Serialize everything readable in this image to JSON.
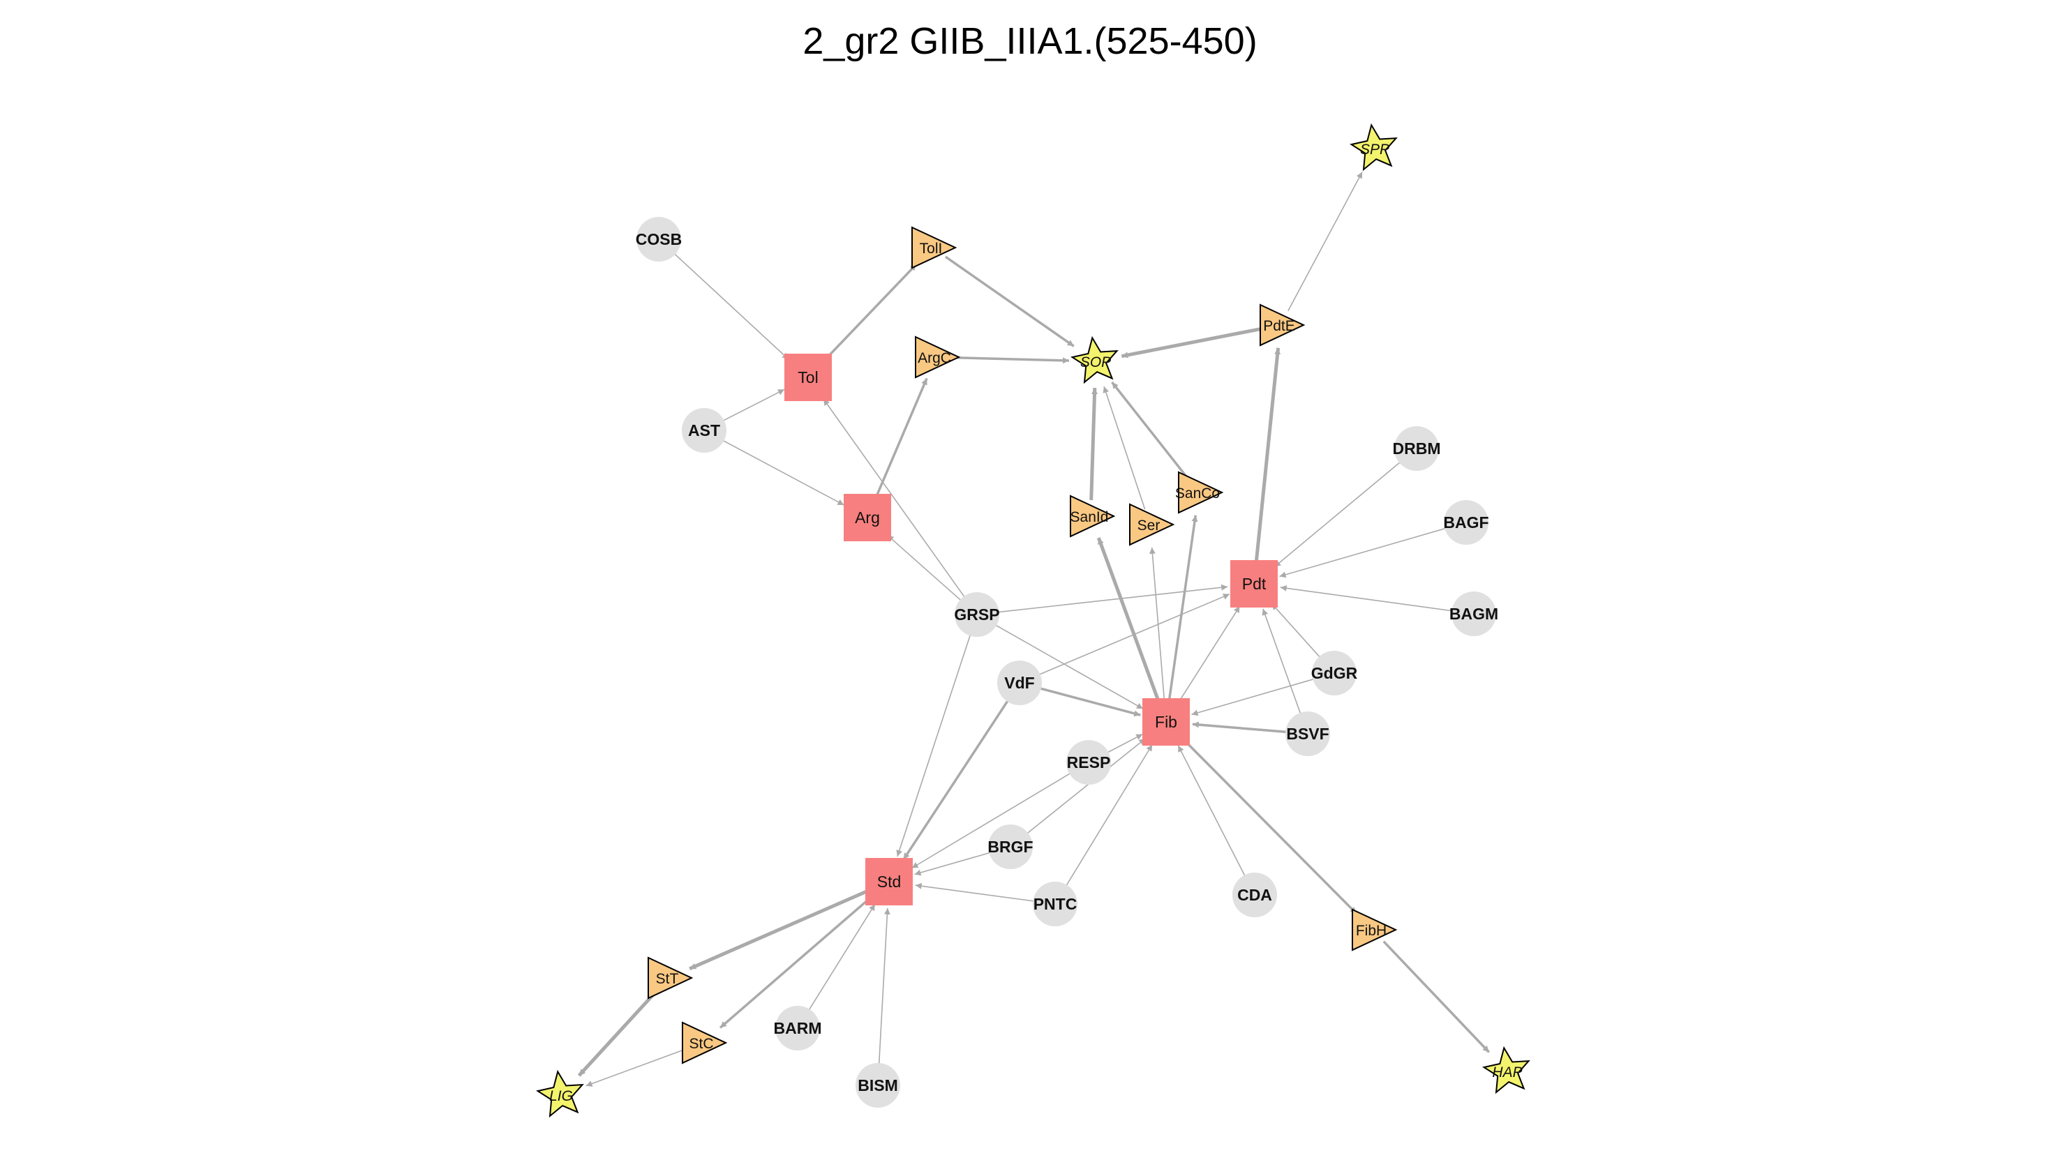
{
  "title": "2_gr2 GIIB_IIIA1.(525-450)",
  "colors": {
    "edge": "#aaaaaa",
    "circle_fill": "#e0e0e0",
    "square_fill": "#f87f7f",
    "triangle_fill": "#f9c883",
    "star_fill": "#f3f36e",
    "node_stroke": "#000000"
  },
  "nodes": [
    {
      "id": "COSB",
      "label": "COSB",
      "shape": "circle"
    },
    {
      "id": "AST",
      "label": "AST",
      "shape": "circle"
    },
    {
      "id": "Tol",
      "label": "Tol",
      "shape": "square"
    },
    {
      "id": "TolT",
      "label": "TolI",
      "shape": "triangle"
    },
    {
      "id": "ArgT",
      "label": "ArgC",
      "shape": "triangle"
    },
    {
      "id": "Arg",
      "label": "Arg",
      "shape": "square"
    },
    {
      "id": "SOP",
      "label": "SOP",
      "shape": "star"
    },
    {
      "id": "SPP",
      "label": "SPP",
      "shape": "star"
    },
    {
      "id": "PdtT",
      "label": "PdtE",
      "shape": "triangle"
    },
    {
      "id": "SanId",
      "label": "SanId",
      "shape": "triangle"
    },
    {
      "id": "Ser",
      "label": "Ser",
      "shape": "triangle"
    },
    {
      "id": "SanCo",
      "label": "SanCo",
      "shape": "triangle"
    },
    {
      "id": "Pdt",
      "label": "Pdt",
      "shape": "square"
    },
    {
      "id": "DRBM",
      "label": "DRBM",
      "shape": "circle"
    },
    {
      "id": "BAGF",
      "label": "BAGF",
      "shape": "circle"
    },
    {
      "id": "BAGM",
      "label": "BAGM",
      "shape": "circle"
    },
    {
      "id": "GRSP",
      "label": "GRSP",
      "shape": "circle"
    },
    {
      "id": "VdF",
      "label": "VdF",
      "shape": "circle"
    },
    {
      "id": "GdGR",
      "label": "GdGR",
      "shape": "circle"
    },
    {
      "id": "Fib",
      "label": "Fib",
      "shape": "square"
    },
    {
      "id": "BSVF",
      "label": "BSVF",
      "shape": "circle"
    },
    {
      "id": "RESP",
      "label": "RESP",
      "shape": "circle"
    },
    {
      "id": "BRGF",
      "label": "BRGF",
      "shape": "circle"
    },
    {
      "id": "Std",
      "label": "Std",
      "shape": "square"
    },
    {
      "id": "PNTC",
      "label": "PNTC",
      "shape": "circle"
    },
    {
      "id": "CDA",
      "label": "CDA",
      "shape": "circle"
    },
    {
      "id": "FibT",
      "label": "FibH",
      "shape": "triangle"
    },
    {
      "id": "StT",
      "label": "StT",
      "shape": "triangle"
    },
    {
      "id": "StC",
      "label": "StC",
      "shape": "triangle"
    },
    {
      "id": "BARM",
      "label": "BARM",
      "shape": "circle"
    },
    {
      "id": "BISM",
      "label": "BISM",
      "shape": "circle"
    },
    {
      "id": "LIG",
      "label": "LIG",
      "shape": "star"
    },
    {
      "id": "HAP",
      "label": "HAP",
      "shape": "star"
    }
  ],
  "edges": [
    {
      "from": "COSB",
      "to": "Tol",
      "weight": 1
    },
    {
      "from": "AST",
      "to": "Tol",
      "weight": 1
    },
    {
      "from": "AST",
      "to": "Arg",
      "weight": 1
    },
    {
      "from": "GRSP",
      "to": "Tol",
      "weight": 1
    },
    {
      "from": "GRSP",
      "to": "Arg",
      "weight": 1
    },
    {
      "from": "GRSP",
      "to": "Pdt",
      "weight": 1
    },
    {
      "from": "GRSP",
      "to": "Fib",
      "weight": 1
    },
    {
      "from": "GRSP",
      "to": "Std",
      "weight": 1
    },
    {
      "from": "Tol",
      "to": "TolT",
      "weight": 2
    },
    {
      "from": "TolT",
      "to": "SOP",
      "weight": 2
    },
    {
      "from": "Arg",
      "to": "ArgT",
      "weight": 2
    },
    {
      "from": "ArgT",
      "to": "SOP",
      "weight": 2
    },
    {
      "from": "PdtT",
      "to": "SOP",
      "weight": 3
    },
    {
      "from": "PdtT",
      "to": "SPP",
      "weight": 1
    },
    {
      "from": "Pdt",
      "to": "PdtT",
      "weight": 3
    },
    {
      "from": "SanId",
      "to": "SOP",
      "weight": 3
    },
    {
      "from": "Ser",
      "to": "SOP",
      "weight": 1
    },
    {
      "from": "SanCo",
      "to": "SOP",
      "weight": 2
    },
    {
      "from": "Fib",
      "to": "SanId",
      "weight": 3
    },
    {
      "from": "Fib",
      "to": "Ser",
      "weight": 1
    },
    {
      "from": "Fib",
      "to": "SanCo",
      "weight": 2
    },
    {
      "from": "Fib",
      "to": "Pdt",
      "weight": 1
    },
    {
      "from": "Fib",
      "to": "FibT",
      "weight": 2
    },
    {
      "from": "FibT",
      "to": "HAP",
      "weight": 2
    },
    {
      "from": "DRBM",
      "to": "Pdt",
      "weight": 1
    },
    {
      "from": "BAGF",
      "to": "Pdt",
      "weight": 1
    },
    {
      "from": "BAGM",
      "to": "Pdt",
      "weight": 1
    },
    {
      "from": "GdGR",
      "to": "Pdt",
      "weight": 1
    },
    {
      "from": "GdGR",
      "to": "Fib",
      "weight": 1
    },
    {
      "from": "BSVF",
      "to": "Pdt",
      "weight": 1
    },
    {
      "from": "BSVF",
      "to": "Fib",
      "weight": 2
    },
    {
      "from": "VdF",
      "to": "Pdt",
      "weight": 1
    },
    {
      "from": "VdF",
      "to": "Fib",
      "weight": 2
    },
    {
      "from": "VdF",
      "to": "Std",
      "weight": 2
    },
    {
      "from": "RESP",
      "to": "Fib",
      "weight": 1
    },
    {
      "from": "RESP",
      "to": "Std",
      "weight": 1
    },
    {
      "from": "BRGF",
      "to": "Fib",
      "weight": 1
    },
    {
      "from": "BRGF",
      "to": "Std",
      "weight": 1
    },
    {
      "from": "PNTC",
      "to": "Fib",
      "weight": 1
    },
    {
      "from": "PNTC",
      "to": "Std",
      "weight": 1
    },
    {
      "from": "CDA",
      "to": "Fib",
      "weight": 1
    },
    {
      "from": "BARM",
      "to": "Std",
      "weight": 1
    },
    {
      "from": "BISM",
      "to": "Std",
      "weight": 1
    },
    {
      "from": "Std",
      "to": "StT",
      "weight": 3
    },
    {
      "from": "Std",
      "to": "StC",
      "weight": 2
    },
    {
      "from": "StT",
      "to": "LIG",
      "weight": 3
    },
    {
      "from": "StC",
      "to": "LIG",
      "weight": 1
    }
  ]
}
